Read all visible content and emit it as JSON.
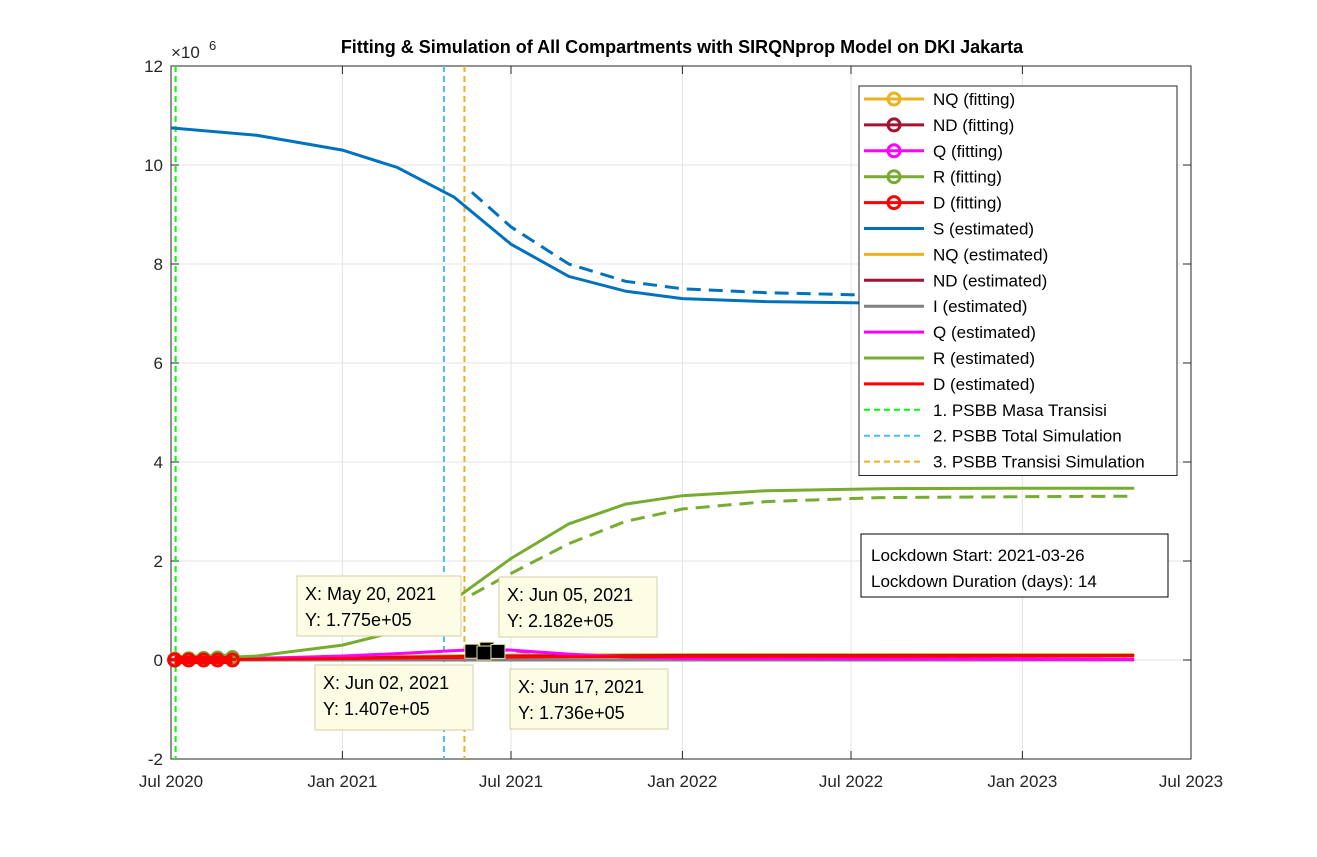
{
  "chart_data": {
    "type": "line",
    "title": "Fitting & Simulation of All Compartments with SIRQNprop Model on DKI Jakarta",
    "xlabel": "",
    "ylabel": "",
    "y_exponent_label": "×10",
    "y_exponent_power": "6",
    "xlim": [
      "2020-07-01",
      "2023-07-01"
    ],
    "ylim": [
      -2,
      12
    ],
    "x_ticks": [
      {
        "date": "2020-07-01",
        "label": "Jul 2020"
      },
      {
        "date": "2021-01-01",
        "label": "Jan 2021"
      },
      {
        "date": "2021-07-01",
        "label": "Jul 2021"
      },
      {
        "date": "2022-01-01",
        "label": "Jan 2022"
      },
      {
        "date": "2022-07-01",
        "label": "Jul 2022"
      },
      {
        "date": "2023-01-01",
        "label": "Jan 2023"
      },
      {
        "date": "2023-07-01",
        "label": "Jul 2023"
      }
    ],
    "y_ticks": [
      {
        "value": -2,
        "label": "-2"
      },
      {
        "value": 0,
        "label": "0"
      },
      {
        "value": 2,
        "label": "2"
      },
      {
        "value": 4,
        "label": "4"
      },
      {
        "value": 6,
        "label": "6"
      },
      {
        "value": 8,
        "label": "8"
      },
      {
        "value": 10,
        "label": "10"
      },
      {
        "value": 12,
        "label": "12"
      }
    ],
    "grid": true,
    "legend_position": "top-right",
    "series": [
      {
        "name": "NQ (fitting)",
        "color": "#EDB120",
        "style": "solid-marker",
        "points": [
          [
            "2020-07-05",
            0.02
          ],
          [
            "2020-07-20",
            0.025
          ],
          [
            "2020-08-05",
            0.03
          ],
          [
            "2020-08-20",
            0.035
          ],
          [
            "2020-09-05",
            0.04
          ]
        ]
      },
      {
        "name": "ND (fitting)",
        "color": "#A2142F",
        "style": "solid-marker",
        "points": [
          [
            "2020-07-05",
            0.0
          ],
          [
            "2020-07-20",
            0.005
          ],
          [
            "2020-08-05",
            0.01
          ],
          [
            "2020-08-20",
            0.012
          ],
          [
            "2020-09-05",
            0.015
          ]
        ]
      },
      {
        "name": "Q (fitting)",
        "color": "#FF00FF",
        "style": "solid-marker",
        "points": [
          [
            "2020-07-05",
            0.01
          ],
          [
            "2020-07-20",
            0.015
          ],
          [
            "2020-08-05",
            0.02
          ],
          [
            "2020-08-20",
            0.03
          ],
          [
            "2020-09-05",
            0.03
          ]
        ]
      },
      {
        "name": "R (fitting)",
        "color": "#77AC30",
        "style": "solid-marker",
        "points": [
          [
            "2020-07-05",
            0.01
          ],
          [
            "2020-07-20",
            0.02
          ],
          [
            "2020-08-05",
            0.03
          ],
          [
            "2020-08-20",
            0.04
          ],
          [
            "2020-09-05",
            0.05
          ]
        ]
      },
      {
        "name": "D (fitting)",
        "color": "#FF0000",
        "style": "solid-marker",
        "points": [
          [
            "2020-07-05",
            0.0
          ],
          [
            "2020-07-20",
            0.0
          ],
          [
            "2020-08-05",
            0.0
          ],
          [
            "2020-08-20",
            0.0
          ],
          [
            "2020-09-05",
            0.0
          ]
        ]
      },
      {
        "name": "S (estimated)",
        "color": "#0072BD",
        "style": "solid",
        "points": [
          [
            "2020-07-01",
            10.75
          ],
          [
            "2020-10-01",
            10.6
          ],
          [
            "2021-01-01",
            10.3
          ],
          [
            "2021-03-01",
            9.95
          ],
          [
            "2021-05-01",
            9.35
          ],
          [
            "2021-07-01",
            8.4
          ],
          [
            "2021-09-01",
            7.75
          ],
          [
            "2021-11-01",
            7.45
          ],
          [
            "2022-01-01",
            7.3
          ],
          [
            "2022-04-01",
            7.24
          ],
          [
            "2022-08-01",
            7.21
          ],
          [
            "2023-01-01",
            7.2
          ],
          [
            "2023-05-01",
            7.2
          ]
        ]
      },
      {
        "name": "NQ (estimated)",
        "color": "#EDB120",
        "style": "solid",
        "points": [
          [
            "2020-07-01",
            0.02
          ],
          [
            "2021-01-01",
            0.06
          ],
          [
            "2021-07-01",
            0.1
          ],
          [
            "2022-01-01",
            0.11
          ],
          [
            "2023-05-01",
            0.11
          ]
        ]
      },
      {
        "name": "ND (estimated)",
        "color": "#A2142F",
        "style": "solid",
        "points": [
          [
            "2020-07-01",
            0.01
          ],
          [
            "2021-01-01",
            0.04
          ],
          [
            "2021-07-01",
            0.08
          ],
          [
            "2022-01-01",
            0.09
          ],
          [
            "2023-05-01",
            0.09
          ]
        ]
      },
      {
        "name": "I (estimated)",
        "color": "#808080",
        "style": "solid",
        "points": [
          [
            "2020-07-01",
            0.0
          ],
          [
            "2021-07-01",
            0.0
          ],
          [
            "2023-05-01",
            0.0
          ]
        ]
      },
      {
        "name": "Q (estimated)",
        "color": "#FF00FF",
        "style": "solid",
        "points": [
          [
            "2020-07-01",
            0.01
          ],
          [
            "2020-10-01",
            0.03
          ],
          [
            "2021-01-01",
            0.08
          ],
          [
            "2021-03-01",
            0.13
          ],
          [
            "2021-05-01",
            0.19
          ],
          [
            "2021-06-05",
            0.218
          ],
          [
            "2021-07-01",
            0.2
          ],
          [
            "2021-09-01",
            0.12
          ],
          [
            "2021-11-01",
            0.06
          ],
          [
            "2022-01-01",
            0.03
          ],
          [
            "2023-05-01",
            0.01
          ]
        ]
      },
      {
        "name": "R (estimated)",
        "color": "#77AC30",
        "style": "solid",
        "points": [
          [
            "2020-07-01",
            0.0
          ],
          [
            "2020-10-01",
            0.08
          ],
          [
            "2021-01-01",
            0.3
          ],
          [
            "2021-03-01",
            0.58
          ],
          [
            "2021-05-01",
            1.22
          ],
          [
            "2021-07-01",
            2.05
          ],
          [
            "2021-09-01",
            2.75
          ],
          [
            "2021-11-01",
            3.15
          ],
          [
            "2022-01-01",
            3.32
          ],
          [
            "2022-04-01",
            3.42
          ],
          [
            "2022-08-01",
            3.46
          ],
          [
            "2023-01-01",
            3.47
          ],
          [
            "2023-05-01",
            3.47
          ]
        ]
      },
      {
        "name": "D (estimated)",
        "color": "#FF0000",
        "style": "solid",
        "points": [
          [
            "2020-07-01",
            0.0
          ],
          [
            "2021-01-01",
            0.03
          ],
          [
            "2021-07-01",
            0.06
          ],
          [
            "2022-01-01",
            0.07
          ],
          [
            "2023-05-01",
            0.08
          ]
        ]
      }
    ],
    "unlabeled_series": [
      {
        "color": "#0072BD",
        "style": "dashed",
        "points": [
          [
            "2021-05-20",
            9.45
          ],
          [
            "2021-07-01",
            8.75
          ],
          [
            "2021-09-01",
            8.0
          ],
          [
            "2021-11-01",
            7.65
          ],
          [
            "2022-01-01",
            7.5
          ],
          [
            "2022-04-01",
            7.42
          ],
          [
            "2022-07-01",
            7.38
          ],
          [
            "2023-01-01",
            7.37
          ],
          [
            "2023-05-01",
            7.36
          ]
        ]
      },
      {
        "color": "#77AC30",
        "style": "dashed",
        "points": [
          [
            "2021-05-20",
            1.32
          ],
          [
            "2021-07-01",
            1.75
          ],
          [
            "2021-09-01",
            2.35
          ],
          [
            "2021-11-01",
            2.8
          ],
          [
            "2022-01-01",
            3.05
          ],
          [
            "2022-04-01",
            3.2
          ],
          [
            "2022-08-01",
            3.28
          ],
          [
            "2023-01-01",
            3.3
          ],
          [
            "2023-05-01",
            3.31
          ]
        ]
      },
      {
        "color": "#FF00FF",
        "style": "dashed",
        "points": [
          [
            "2021-05-20",
            0.1775
          ],
          [
            "2021-06-05",
            0.2182
          ],
          [
            "2021-07-01",
            0.19
          ],
          [
            "2021-09-01",
            0.1
          ],
          [
            "2022-01-01",
            0.03
          ],
          [
            "2023-05-01",
            0.01
          ]
        ]
      }
    ],
    "vertical_lines": [
      {
        "name": "1. PSBB Masa Transisi",
        "date": "2020-07-06",
        "color": "#00FF00"
      },
      {
        "name": "2. PSBB Total Simulation",
        "date": "2021-04-20",
        "color": "#4DBEEE"
      },
      {
        "name": "3. PSBB Transisi Simulation",
        "date": "2021-05-12",
        "color": "#EDB120"
      }
    ],
    "datatips": [
      {
        "x_text": "X: May 20, 2021",
        "y_text": "Y: 1.775e+05",
        "date": "2021-05-20",
        "value": 0.1775
      },
      {
        "x_text": "X: Jun 05, 2021",
        "y_text": "Y: 2.182e+05",
        "date": "2021-06-05",
        "value": 0.2182
      },
      {
        "x_text": "X: Jun 02, 2021",
        "y_text": "Y: 1.407e+05",
        "date": "2021-06-02",
        "value": 0.1407
      },
      {
        "x_text": "X: Jun 17, 2021",
        "y_text": "Y: 1.736e+05",
        "date": "2021-06-17",
        "value": 0.1736
      }
    ],
    "annotation": {
      "line1": "Lockdown Start: 2021-03-26",
      "line2": "Lockdown Duration (days): 14"
    },
    "legend": [
      {
        "label": "NQ (fitting)",
        "color": "#EDB120",
        "kind": "marker"
      },
      {
        "label": "ND (fitting)",
        "color": "#A2142F",
        "kind": "marker"
      },
      {
        "label": "Q (fitting)",
        "color": "#FF00FF",
        "kind": "marker"
      },
      {
        "label": "R (fitting)",
        "color": "#77AC30",
        "kind": "marker"
      },
      {
        "label": "D (fitting)",
        "color": "#FF0000",
        "kind": "marker"
      },
      {
        "label": "S (estimated)",
        "color": "#0072BD",
        "kind": "line"
      },
      {
        "label": "NQ (estimated)",
        "color": "#EDB120",
        "kind": "line"
      },
      {
        "label": "ND (estimated)",
        "color": "#A2142F",
        "kind": "line"
      },
      {
        "label": "I (estimated)",
        "color": "#808080",
        "kind": "line"
      },
      {
        "label": "Q (estimated)",
        "color": "#FF00FF",
        "kind": "line"
      },
      {
        "label": "R (estimated)",
        "color": "#77AC30",
        "kind": "line"
      },
      {
        "label": "D (estimated)",
        "color": "#FF0000",
        "kind": "line"
      },
      {
        "label": "1. PSBB Masa Transisi",
        "color": "#00FF00",
        "kind": "dash"
      },
      {
        "label": "2. PSBB Total Simulation",
        "color": "#4DBEEE",
        "kind": "dash"
      },
      {
        "label": "3. PSBB Transisi Simulation",
        "color": "#EDB120",
        "kind": "dash"
      }
    ]
  }
}
